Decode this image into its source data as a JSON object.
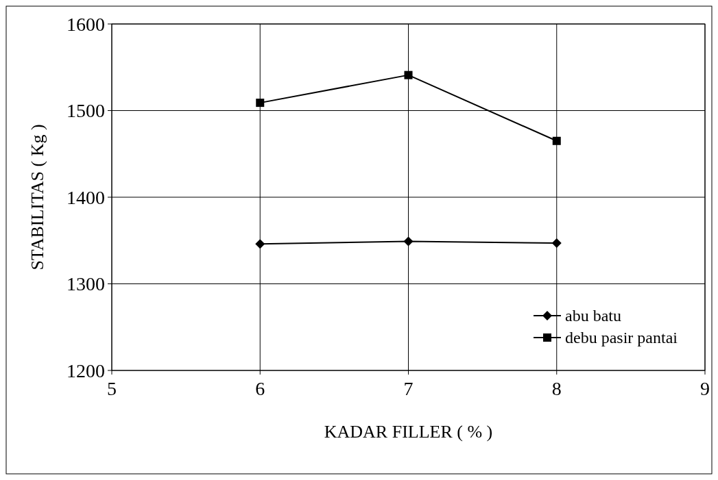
{
  "chart_data": {
    "type": "line",
    "xlabel": "KADAR FILLER ( % )",
    "ylabel": "STABILITAS ( Kg )",
    "x": [
      6,
      7,
      8
    ],
    "series": [
      {
        "name": "abu batu",
        "color": "#000000",
        "marker": "diamond",
        "values": [
          1346,
          1349,
          1347
        ]
      },
      {
        "name": "debu pasir pantai",
        "color": "#000000",
        "marker": "square",
        "values": [
          1509,
          1541,
          1465
        ]
      }
    ],
    "xlim": [
      5,
      9
    ],
    "xticks": [
      5,
      6,
      7,
      8,
      9
    ],
    "ylim": [
      1200,
      1600
    ],
    "yticks": [
      1200,
      1300,
      1400,
      1500,
      1600
    ],
    "grid": true,
    "legend": "bottom right",
    "line_style": "solid"
  }
}
